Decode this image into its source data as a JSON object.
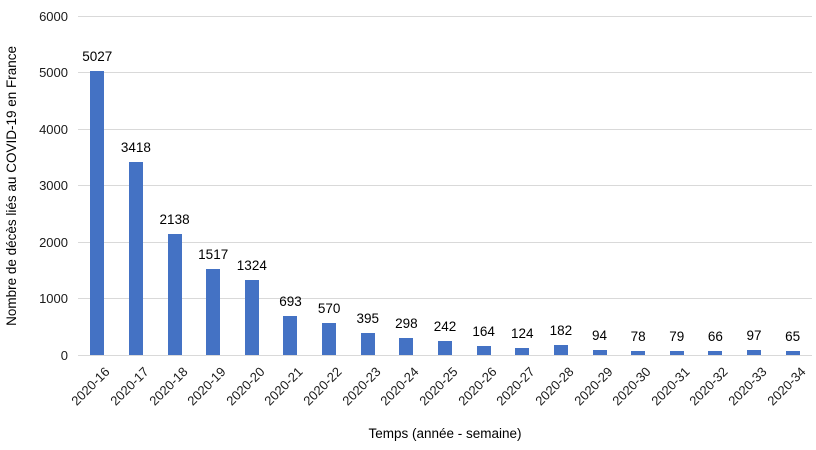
{
  "chart_data": {
    "type": "bar",
    "title": "",
    "categories": [
      "2020-16",
      "2020-17",
      "2020-18",
      "2020-19",
      "2020-20",
      "2020-21",
      "2020-22",
      "2020-23",
      "2020-24",
      "2020-25",
      "2020-26",
      "2020-27",
      "2020-28",
      "2020-29",
      "2020-30",
      "2020-31",
      "2020-32",
      "2020-33",
      "2020-34"
    ],
    "values": [
      5027,
      3418,
      2138,
      1517,
      1324,
      693,
      570,
      395,
      298,
      242,
      164,
      124,
      182,
      94,
      78,
      79,
      66,
      97,
      65
    ],
    "xlabel": "Temps (année - semaine)",
    "ylabel": "Nombre de décès liés au COVID-19 en France",
    "ylim": [
      0,
      6000
    ],
    "yticks": [
      0,
      1000,
      2000,
      3000,
      4000,
      5000,
      6000
    ],
    "grid": true,
    "legend_position": "none",
    "data_labels": true,
    "colors": {
      "bar": "#4472C4",
      "gridline": "#d9d9d9",
      "tick_text": "#1a1a1a",
      "label_text": "#000000",
      "background": "#ffffff"
    }
  }
}
